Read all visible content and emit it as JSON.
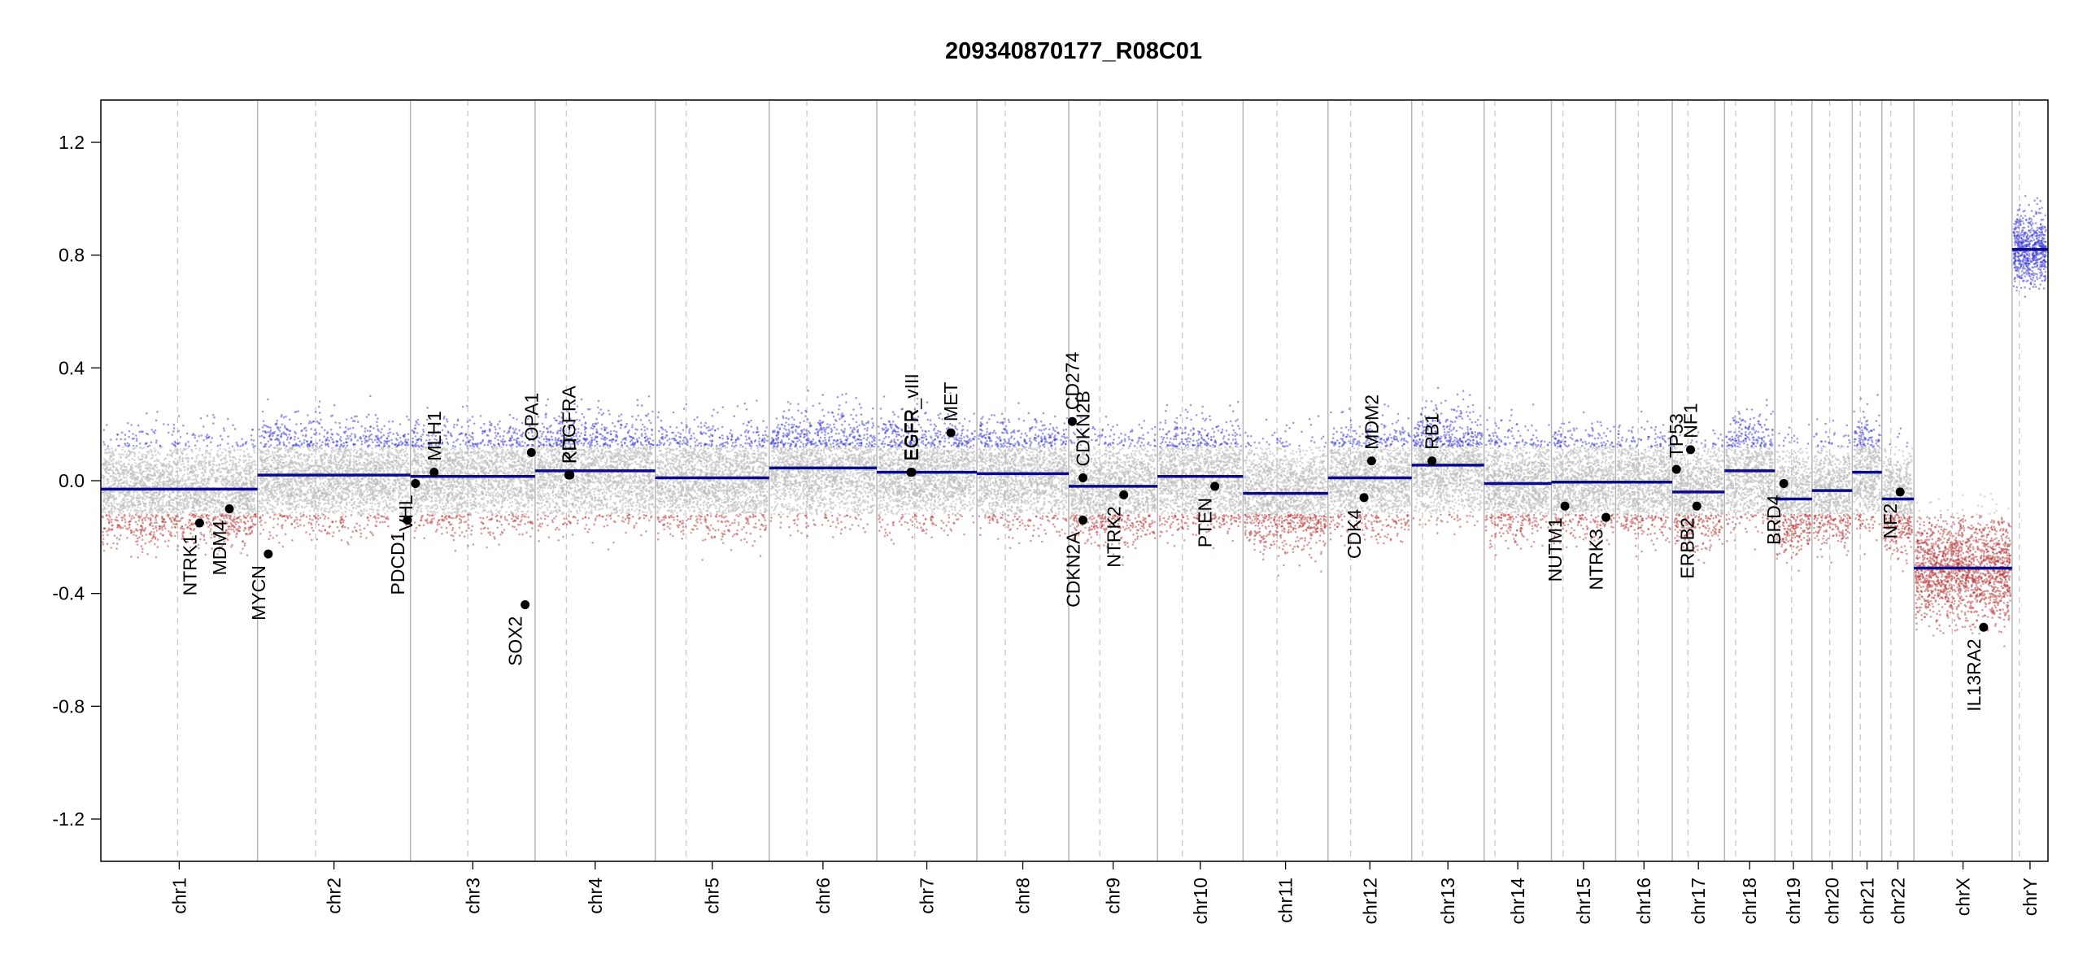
{
  "chart_data": {
    "type": "scatter",
    "title": "209340870177_R08C01",
    "xlabel": "",
    "ylabel": "",
    "ylim": [
      -1.35,
      1.35
    ],
    "yticks": [
      -1.2,
      -0.8,
      -0.4,
      0.0,
      0.4,
      0.8,
      1.2
    ],
    "ytick_labels": [
      "-1.2",
      "-0.8",
      "-0.4",
      "0.0",
      "0.4",
      "0.8",
      "1.2"
    ],
    "grid": false,
    "colors": {
      "gain": "#3b3bd6",
      "loss": "#b83a3a",
      "neutral": "#b9b9b9",
      "segment": "#0b0b8a",
      "boundary": "#b5b5b5",
      "centromere": "#c8c8c8"
    },
    "chromosomes": [
      {
        "name": "chr1",
        "length": 249,
        "centromere": 0.49,
        "segments": [
          {
            "start": 0,
            "end": 1,
            "value": -0.03
          }
        ]
      },
      {
        "name": "chr2",
        "length": 243,
        "centromere": 0.38,
        "segments": [
          {
            "start": 0,
            "end": 1,
            "value": 0.02
          }
        ]
      },
      {
        "name": "chr3",
        "length": 198,
        "centromere": 0.46,
        "segments": [
          {
            "start": 0,
            "end": 1,
            "value": 0.015
          }
        ]
      },
      {
        "name": "chr4",
        "length": 191,
        "centromere": 0.26,
        "segments": [
          {
            "start": 0,
            "end": 1,
            "value": 0.035
          }
        ]
      },
      {
        "name": "chr5",
        "length": 181,
        "centromere": 0.27,
        "segments": [
          {
            "start": 0,
            "end": 1,
            "value": 0.01
          }
        ]
      },
      {
        "name": "chr6",
        "length": 171,
        "centromere": 0.35,
        "segments": [
          {
            "start": 0,
            "end": 1,
            "value": 0.045
          }
        ]
      },
      {
        "name": "chr7",
        "length": 159,
        "centromere": 0.38,
        "segments": [
          {
            "start": 0,
            "end": 1,
            "value": 0.03
          }
        ]
      },
      {
        "name": "chr8",
        "length": 146,
        "centromere": 0.31,
        "segments": [
          {
            "start": 0,
            "end": 1,
            "value": 0.025
          }
        ]
      },
      {
        "name": "chr9",
        "length": 141,
        "centromere": 0.35,
        "segments": [
          {
            "start": 0,
            "end": 1,
            "value": -0.02
          }
        ]
      },
      {
        "name": "chr10",
        "length": 136,
        "centromere": 0.29,
        "segments": [
          {
            "start": 0,
            "end": 1,
            "value": 0.015
          }
        ]
      },
      {
        "name": "chr11",
        "length": 135,
        "centromere": 0.4,
        "segments": [
          {
            "start": 0,
            "end": 1,
            "value": -0.045
          }
        ]
      },
      {
        "name": "chr12",
        "length": 133,
        "centromere": 0.27,
        "segments": [
          {
            "start": 0,
            "end": 1,
            "value": 0.01
          }
        ]
      },
      {
        "name": "chr13",
        "length": 115,
        "centromere": 0.15,
        "segments": [
          {
            "start": 0,
            "end": 1,
            "value": 0.055
          }
        ]
      },
      {
        "name": "chr14",
        "length": 107,
        "centromere": 0.16,
        "segments": [
          {
            "start": 0,
            "end": 1,
            "value": -0.01
          }
        ]
      },
      {
        "name": "chr15",
        "length": 102,
        "centromere": 0.18,
        "segments": [
          {
            "start": 0,
            "end": 1,
            "value": -0.005
          }
        ]
      },
      {
        "name": "chr16",
        "length": 90,
        "centromere": 0.4,
        "segments": [
          {
            "start": 0,
            "end": 1,
            "value": -0.005
          }
        ]
      },
      {
        "name": "chr17",
        "length": 83,
        "centromere": 0.3,
        "segments": [
          {
            "start": 0,
            "end": 1,
            "value": -0.04
          }
        ]
      },
      {
        "name": "chr18",
        "length": 80,
        "centromere": 0.22,
        "segments": [
          {
            "start": 0,
            "end": 1,
            "value": 0.035
          }
        ]
      },
      {
        "name": "chr19",
        "length": 59,
        "centromere": 0.45,
        "segments": [
          {
            "start": 0,
            "end": 1,
            "value": -0.065
          }
        ]
      },
      {
        "name": "chr20",
        "length": 64,
        "centromere": 0.44,
        "segments": [
          {
            "start": 0,
            "end": 1,
            "value": -0.035
          }
        ]
      },
      {
        "name": "chr21",
        "length": 47,
        "centromere": 0.27,
        "segments": [
          {
            "start": 0,
            "end": 1,
            "value": 0.03
          }
        ]
      },
      {
        "name": "chr22",
        "length": 51,
        "centromere": 0.28,
        "segments": [
          {
            "start": 0,
            "end": 1,
            "value": -0.065
          }
        ]
      },
      {
        "name": "chrX",
        "length": 156,
        "centromere": 0.39,
        "segments": [
          {
            "start": 0,
            "end": 1,
            "value": -0.31
          }
        ]
      },
      {
        "name": "chrY",
        "length": 57,
        "centromere": 0.2,
        "segments": [
          {
            "start": 0,
            "end": 1,
            "value": 0.82
          }
        ]
      }
    ],
    "genes": [
      {
        "name": "NTRK1",
        "chr": "chr1",
        "pos": 0.63,
        "value": -0.15,
        "label_side": "below"
      },
      {
        "name": "MDM4",
        "chr": "chr1",
        "pos": 0.82,
        "value": -0.1,
        "label_side": "below"
      },
      {
        "name": "MYCN",
        "chr": "chr2",
        "pos": 0.07,
        "value": -0.26,
        "label_side": "below"
      },
      {
        "name": "PDCD1",
        "chr": "chr2",
        "pos": 0.98,
        "value": -0.14,
        "label_side": "below"
      },
      {
        "name": "VHL",
        "chr": "chr3",
        "pos": 0.04,
        "value": -0.01,
        "label_side": "below"
      },
      {
        "name": "MLH1",
        "chr": "chr3",
        "pos": 0.19,
        "value": 0.03,
        "label_side": "above"
      },
      {
        "name": "SOX2",
        "chr": "chr3",
        "pos": 0.92,
        "value": -0.44,
        "label_side": "below"
      },
      {
        "name": "OPA1",
        "chr": "chr3",
        "pos": 0.97,
        "value": 0.1,
        "label_side": "above"
      },
      {
        "name": "PDGFRA",
        "chr": "chr4",
        "pos": 0.28,
        "value": 0.02,
        "label_side": "above"
      },
      {
        "name": "KIT",
        "chr": "chr4",
        "pos": 0.29,
        "value": 0.02,
        "label_side": "above"
      },
      {
        "name": "EGFR",
        "chr": "chr7",
        "pos": 0.34,
        "value": 0.03,
        "label_side": "above"
      },
      {
        "name": "EGFR_vIII",
        "chr": "chr7",
        "pos": 0.35,
        "value": 0.03,
        "label_side": "above"
      },
      {
        "name": "MET",
        "chr": "chr7",
        "pos": 0.74,
        "value": 0.17,
        "label_side": "above"
      },
      {
        "name": "CD274",
        "chr": "chr9",
        "pos": 0.04,
        "value": 0.21,
        "label_side": "above"
      },
      {
        "name": "CDKN2B",
        "chr": "chr9",
        "pos": 0.16,
        "value": 0.01,
        "label_side": "above"
      },
      {
        "name": "CDKN2A",
        "chr": "chr9",
        "pos": 0.16,
        "value": -0.14,
        "label_side": "below"
      },
      {
        "name": "NTRK2",
        "chr": "chr9",
        "pos": 0.62,
        "value": -0.05,
        "label_side": "below"
      },
      {
        "name": "PTEN",
        "chr": "chr10",
        "pos": 0.67,
        "value": -0.02,
        "label_side": "below"
      },
      {
        "name": "CDK4",
        "chr": "chr12",
        "pos": 0.43,
        "value": -0.06,
        "label_side": "below"
      },
      {
        "name": "MDM2",
        "chr": "chr12",
        "pos": 0.52,
        "value": 0.07,
        "label_side": "above"
      },
      {
        "name": "RB1",
        "chr": "chr13",
        "pos": 0.28,
        "value": 0.07,
        "label_side": "above"
      },
      {
        "name": "NUTM1",
        "chr": "chr15",
        "pos": 0.21,
        "value": -0.09,
        "label_side": "below"
      },
      {
        "name": "NTRK3",
        "chr": "chr15",
        "pos": 0.85,
        "value": -0.13,
        "label_side": "below"
      },
      {
        "name": "TP53",
        "chr": "chr17",
        "pos": 0.08,
        "value": 0.04,
        "label_side": "above"
      },
      {
        "name": "NF1",
        "chr": "chr17",
        "pos": 0.35,
        "value": 0.11,
        "label_side": "above"
      },
      {
        "name": "ERBB2",
        "chr": "chr17",
        "pos": 0.47,
        "value": -0.09,
        "label_side": "below"
      },
      {
        "name": "BRD4",
        "chr": "chr19",
        "pos": 0.24,
        "value": -0.01,
        "label_side": "below"
      },
      {
        "name": "NF2",
        "chr": "chr22",
        "pos": 0.57,
        "value": -0.04,
        "label_side": "below"
      },
      {
        "name": "IL13RA2",
        "chr": "chrX",
        "pos": 0.71,
        "value": -0.52,
        "label_side": "below"
      }
    ]
  }
}
